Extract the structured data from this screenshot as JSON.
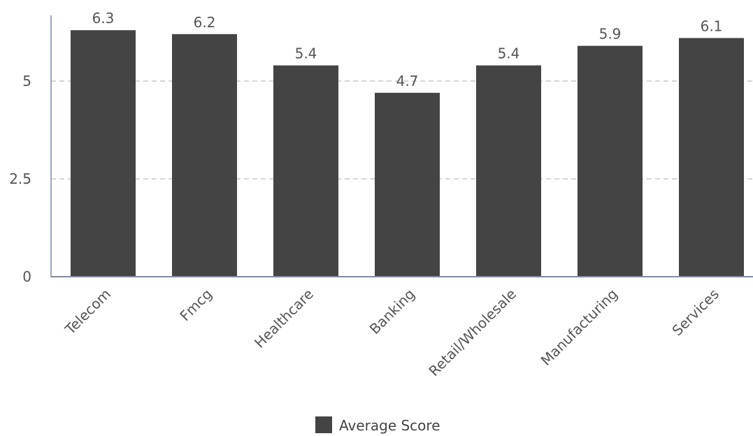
{
  "chart_data": {
    "type": "bar",
    "categories": [
      "Telecom",
      "Fmcg",
      "Healthcare",
      "Banking",
      "Retail/Wholesale",
      "Manufacturing",
      "Services"
    ],
    "series": [
      {
        "name": "Average Score",
        "values": [
          6.3,
          6.2,
          5.4,
          4.7,
          5.4,
          5.9,
          6.1
        ],
        "color": "#444444"
      }
    ],
    "data_labels": [
      "6.3",
      "6.2",
      "5.4",
      "4.7",
      "5.4",
      "5.9",
      "6.1"
    ],
    "y_ticks": [
      0,
      2.5,
      5
    ],
    "y_tick_labels": [
      "0",
      "2.5",
      "5"
    ],
    "ylim": [
      0,
      6.3
    ],
    "grid": "horizontal-dashed",
    "legend_position": "bottom-center",
    "title": "",
    "xlabel": "",
    "ylabel": ""
  },
  "legend": {
    "label": "Average Score",
    "swatch_color": "#444444"
  },
  "colors": {
    "bar": "#444444",
    "axis": "#7b8da0",
    "grid": "#c8c8c8",
    "text": "#555555"
  }
}
